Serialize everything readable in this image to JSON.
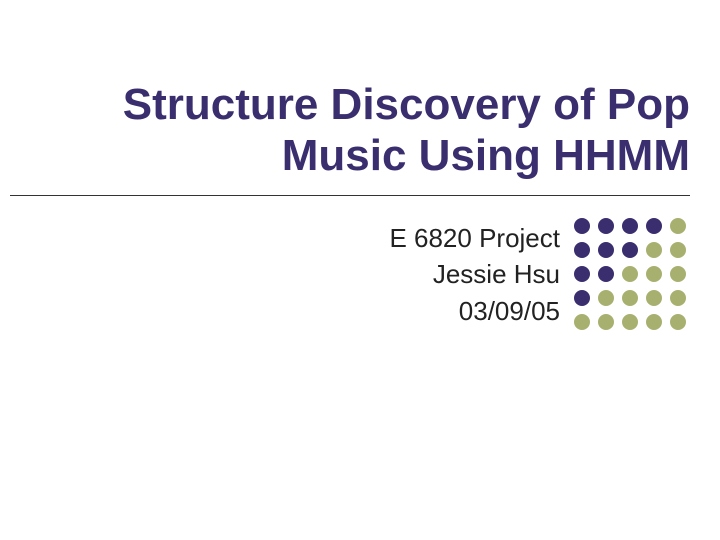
{
  "title": {
    "line1": "Structure Discovery of Pop",
    "line2": "Music Using HHMM",
    "color": "#3a2e6e",
    "fontsize": 44,
    "fontweight": "bold"
  },
  "subtitle": {
    "line1": "E 6820 Project",
    "line2": "Jessie Hsu",
    "line3": "03/09/05",
    "color": "#222222",
    "fontsize": 26
  },
  "divider": {
    "color": "#333333"
  },
  "dot_grid": {
    "rows": 5,
    "cols": 5,
    "dot_size": 16,
    "colors": {
      "dark": "#3a2e6e",
      "light": "#a8b070"
    },
    "pattern": [
      [
        "dark",
        "dark",
        "dark",
        "dark",
        "light"
      ],
      [
        "dark",
        "dark",
        "dark",
        "light",
        "light"
      ],
      [
        "dark",
        "dark",
        "light",
        "light",
        "light"
      ],
      [
        "dark",
        "light",
        "light",
        "light",
        "light"
      ],
      [
        "light",
        "light",
        "light",
        "light",
        "light"
      ]
    ]
  },
  "background_color": "#ffffff"
}
